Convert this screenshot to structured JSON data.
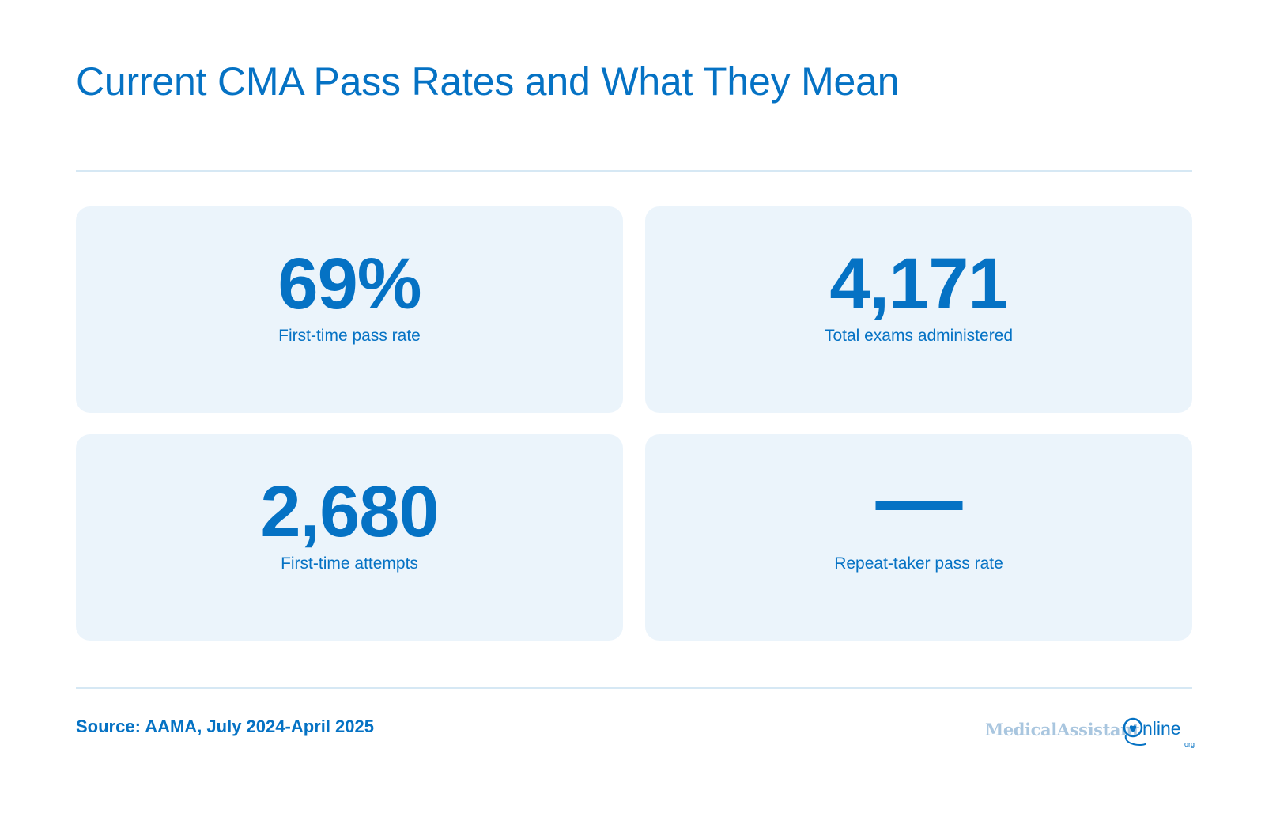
{
  "title": "Current CMA Pass Rates and What They Mean",
  "stats": [
    {
      "value": "69%",
      "label": "First-time pass rate"
    },
    {
      "value": "4,171",
      "label": "Total exams administered"
    },
    {
      "value": "2,680",
      "label": "First-time attempts"
    },
    {
      "value": "—",
      "label": "Repeat-taker pass rate"
    }
  ],
  "source": "Source: AAMA, July 2024-April 2025",
  "logo": {
    "part1": "MedicalAssistant",
    "part2": "nline",
    "suffix": "org",
    "icon": "stethoscope-heart-icon"
  },
  "colors": {
    "accent": "#0572c4",
    "card_bg": "#ebf4fb",
    "divider": "#d6e8f4",
    "logo_light": "#a9c6df"
  }
}
